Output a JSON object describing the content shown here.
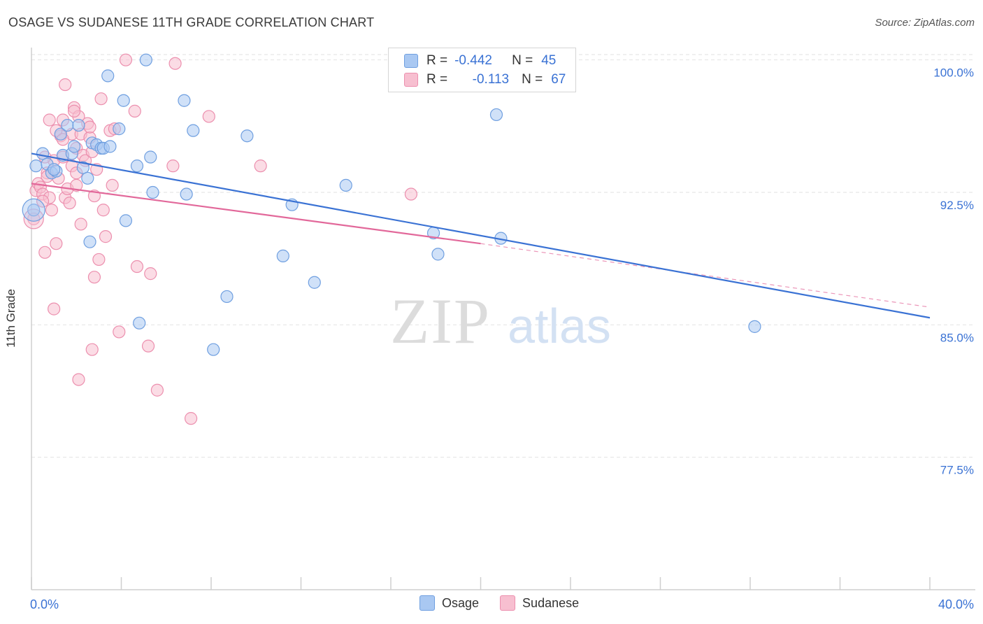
{
  "header": {
    "title": "OSAGE VS SUDANESE 11TH GRADE CORRELATION CHART",
    "source": "Source: ZipAtlas.com"
  },
  "watermark": {
    "zip": "ZIP",
    "atlas": "atlas"
  },
  "legend": {
    "rows": [
      {
        "r_label": "R =",
        "r_value": "-0.442",
        "n_label": "N =",
        "n_value": "45",
        "color": "#a9c8f2",
        "border": "#6f9fe0"
      },
      {
        "r_label": "R =",
        "r_value": "-0.113",
        "n_label": "N =",
        "n_value": "67",
        "color": "#f7bfd0",
        "border": "#ec8fae"
      }
    ]
  },
  "bottom_legend": {
    "osage": "Osage",
    "sudanese": "Sudanese"
  },
  "chart_data": {
    "type": "scatter",
    "xlabel": "",
    "ylabel": "11th Grade",
    "xlim": [
      0,
      40
    ],
    "ylim": [
      70,
      100.7
    ],
    "x_tick_labels": [
      "0.0%",
      "40.0%"
    ],
    "y_ticks": [
      {
        "value": 100,
        "label": "100.0%"
      },
      {
        "value": 92.5,
        "label": "92.5%"
      },
      {
        "value": 85,
        "label": "85.0%"
      },
      {
        "value": 77.5,
        "label": "77.5%"
      }
    ],
    "grid": true,
    "series": [
      {
        "name": "Osage",
        "color": "#6f9fe0",
        "fill": "#a9c8f2",
        "trend": {
          "x": [
            0,
            40
          ],
          "y": [
            94.7,
            85.4
          ],
          "color": "#3a72d4"
        },
        "points": [
          [
            0.2,
            94.0
          ],
          [
            0.5,
            94.7
          ],
          [
            0.7,
            94.1
          ],
          [
            0.9,
            93.6
          ],
          [
            1.1,
            93.7
          ],
          [
            1.3,
            95.8
          ],
          [
            1.4,
            94.6
          ],
          [
            1.6,
            96.3
          ],
          [
            1.8,
            94.7
          ],
          [
            1.9,
            95.1
          ],
          [
            2.1,
            96.3
          ],
          [
            2.3,
            93.9
          ],
          [
            2.5,
            93.3
          ],
          [
            2.6,
            89.7
          ],
          [
            2.7,
            95.3
          ],
          [
            2.9,
            95.2
          ],
          [
            3.1,
            95.0
          ],
          [
            3.2,
            95.0
          ],
          [
            3.4,
            99.1
          ],
          [
            3.5,
            95.1
          ],
          [
            3.9,
            96.1
          ],
          [
            4.1,
            97.7
          ],
          [
            4.2,
            90.9
          ],
          [
            4.7,
            94.0
          ],
          [
            4.8,
            85.1
          ],
          [
            5.1,
            100.0
          ],
          [
            5.3,
            94.5
          ],
          [
            5.4,
            92.5
          ],
          [
            6.8,
            97.7
          ],
          [
            6.9,
            92.4
          ],
          [
            7.2,
            96.0
          ],
          [
            8.1,
            83.6
          ],
          [
            8.7,
            86.6
          ],
          [
            9.6,
            95.7
          ],
          [
            11.2,
            88.9
          ],
          [
            11.6,
            91.8
          ],
          [
            12.6,
            87.4
          ],
          [
            14.0,
            92.9
          ],
          [
            17.9,
            90.2
          ],
          [
            18.1,
            89.0
          ],
          [
            20.7,
            96.9
          ],
          [
            20.9,
            89.9
          ],
          [
            32.2,
            84.9
          ],
          [
            0.1,
            91.5
          ],
          [
            1.0,
            93.8
          ]
        ]
      },
      {
        "name": "Sudanese",
        "color": "#ec8fae",
        "fill": "#f7bfd0",
        "trend": {
          "x": [
            0,
            20
          ],
          "y": [
            93.0,
            89.6
          ],
          "color": "#e2689a"
        },
        "trend_ext": {
          "x": [
            20,
            40
          ],
          "y": [
            89.6,
            86.0
          ]
        },
        "points": [
          [
            0.1,
            91.0
          ],
          [
            0.2,
            92.6
          ],
          [
            0.3,
            93.0
          ],
          [
            0.4,
            92.8
          ],
          [
            0.5,
            92.4
          ],
          [
            0.6,
            89.1
          ],
          [
            0.7,
            93.6
          ],
          [
            0.8,
            96.6
          ],
          [
            0.8,
            92.2
          ],
          [
            0.9,
            91.5
          ],
          [
            1.0,
            94.3
          ],
          [
            1.0,
            85.9
          ],
          [
            1.1,
            89.6
          ],
          [
            1.2,
            93.3
          ],
          [
            1.3,
            95.7
          ],
          [
            1.4,
            96.6
          ],
          [
            1.4,
            94.5
          ],
          [
            1.5,
            92.2
          ],
          [
            1.6,
            92.7
          ],
          [
            1.7,
            91.9
          ],
          [
            1.8,
            94.0
          ],
          [
            1.8,
            95.8
          ],
          [
            1.9,
            97.3
          ],
          [
            2.0,
            95.0
          ],
          [
            2.0,
            93.6
          ],
          [
            2.1,
            96.8
          ],
          [
            2.2,
            95.8
          ],
          [
            2.2,
            90.7
          ],
          [
            2.3,
            94.6
          ],
          [
            2.4,
            94.3
          ],
          [
            2.5,
            96.4
          ],
          [
            2.6,
            95.6
          ],
          [
            2.7,
            94.8
          ],
          [
            2.8,
            87.7
          ],
          [
            2.9,
            93.8
          ],
          [
            3.0,
            88.7
          ],
          [
            3.1,
            97.8
          ],
          [
            3.2,
            91.5
          ],
          [
            3.3,
            90.0
          ],
          [
            3.5,
            96.0
          ],
          [
            3.7,
            96.1
          ],
          [
            3.9,
            84.6
          ],
          [
            4.2,
            100.0
          ],
          [
            4.6,
            97.1
          ],
          [
            4.7,
            88.3
          ],
          [
            5.2,
            83.8
          ],
          [
            5.3,
            87.9
          ],
          [
            5.6,
            81.3
          ],
          [
            6.3,
            94.0
          ],
          [
            6.4,
            99.8
          ],
          [
            7.1,
            79.7
          ],
          [
            7.9,
            96.8
          ],
          [
            10.2,
            94.0
          ],
          [
            16.9,
            92.4
          ],
          [
            0.7,
            93.4
          ],
          [
            0.6,
            94.5
          ],
          [
            1.1,
            96.0
          ],
          [
            1.4,
            95.5
          ],
          [
            1.9,
            97.1
          ],
          [
            2.6,
            96.2
          ],
          [
            1.5,
            98.6
          ],
          [
            2.0,
            92.9
          ],
          [
            2.8,
            92.3
          ],
          [
            3.6,
            92.9
          ],
          [
            2.7,
            83.6
          ],
          [
            2.1,
            81.9
          ],
          [
            0.5,
            92.0
          ]
        ]
      }
    ]
  }
}
